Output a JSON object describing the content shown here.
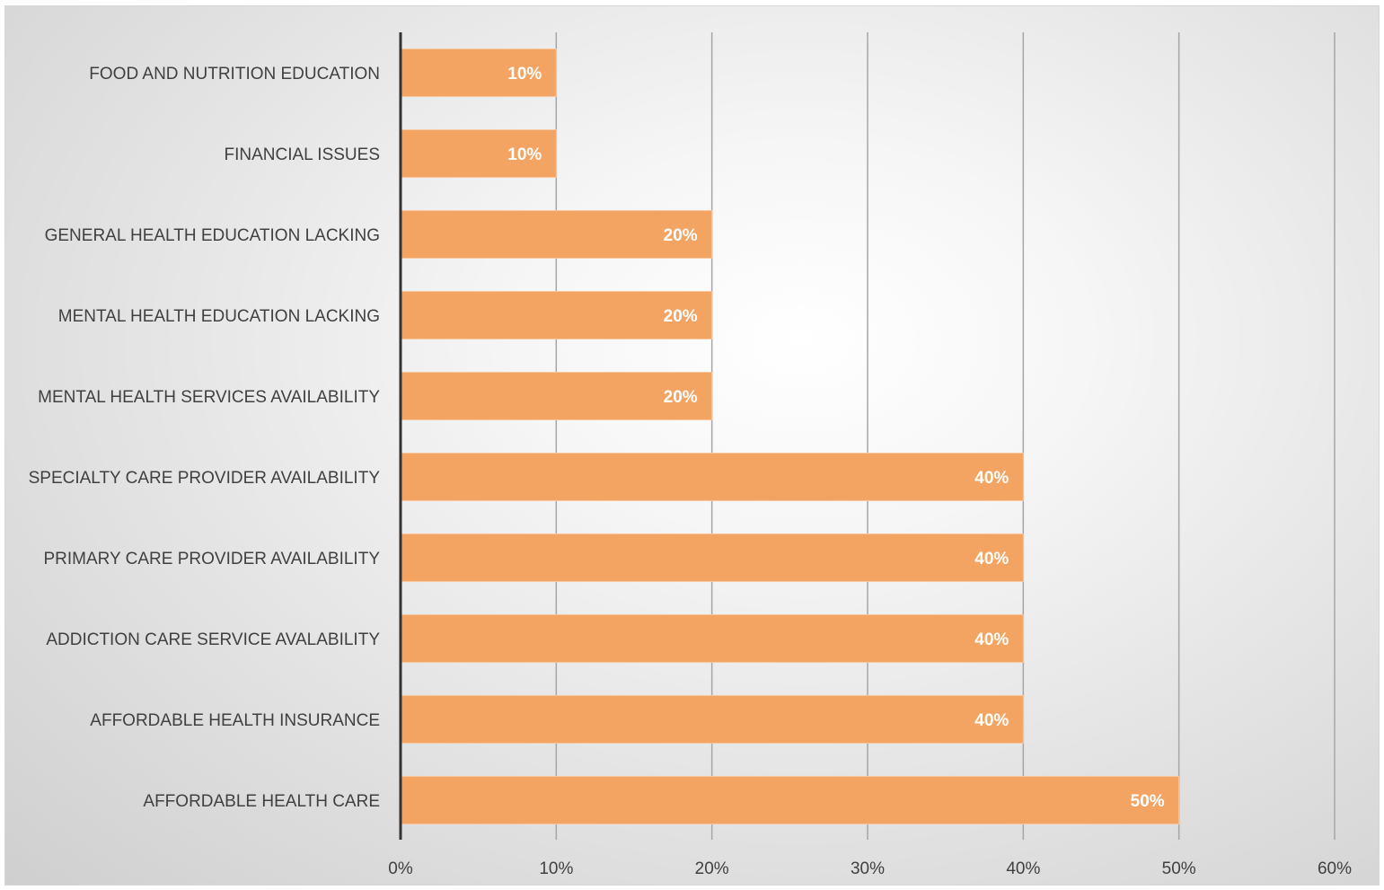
{
  "chart_data": {
    "type": "bar",
    "orientation": "horizontal",
    "title": "",
    "xlabel": "",
    "ylabel": "",
    "categories": [
      "FOOD AND NUTRITION EDUCATION",
      "FINANCIAL ISSUES",
      "GENERAL HEALTH EDUCATION LACKING",
      "MENTAL HEALTH EDUCATION LACKING",
      "MENTAL HEALTH SERVICES AVAILABILITY",
      "SPECIALTY CARE PROVIDER AVAILABILITY",
      "PRIMARY CARE PROVIDER AVAILABILITY",
      "ADDICTION CARE SERVICE AVALABILITY",
      "AFFORDABLE HEALTH INSURANCE",
      "AFFORDABLE HEALTH CARE"
    ],
    "values": [
      10,
      10,
      20,
      20,
      20,
      40,
      40,
      40,
      40,
      50
    ],
    "data_labels": [
      "10%",
      "10%",
      "20%",
      "20%",
      "20%",
      "40%",
      "40%",
      "40%",
      "40%",
      "50%"
    ],
    "xlim": [
      0,
      60
    ],
    "x_ticks": [
      0,
      10,
      20,
      30,
      40,
      50,
      60
    ],
    "x_tick_labels": [
      "0%",
      "10%",
      "20%",
      "30%",
      "40%",
      "50%",
      "60%"
    ],
    "grid": "vertical",
    "legend": "none",
    "colors": {
      "bar": "#f4a462",
      "bar_stroke": "#f7c8a0",
      "gridline": "#a6a6a6",
      "axis": "#333333",
      "text": "#404040",
      "data_label": "#ffffff"
    }
  }
}
